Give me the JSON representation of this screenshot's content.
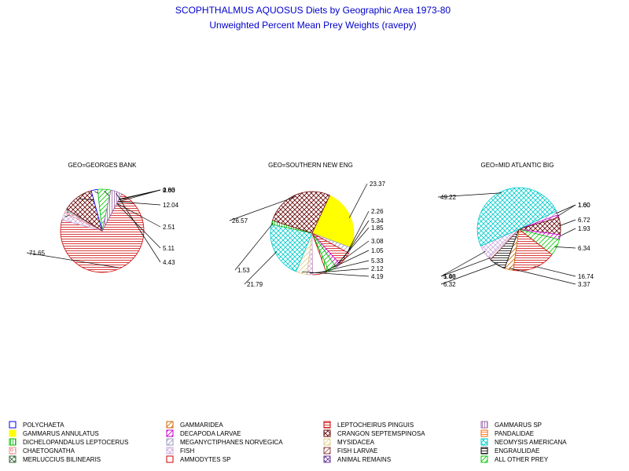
{
  "title": "SCOPHTHALMUS AQUOSUS Diets by Geographic Area 1973-80",
  "subtitle": "Unweighted Percent Mean Prey Weights (ravepy)",
  "categories": [
    {
      "name": "POLYCHAETA",
      "color": "#0000ff",
      "pattern": "none"
    },
    {
      "name": "GAMMARIDEA",
      "color": "#cc6600",
      "pattern": "diag"
    },
    {
      "name": "LEPTOCHEIRUS PINGUIS",
      "color": "#cc0000",
      "pattern": "horiz"
    },
    {
      "name": "GAMMARUS SP",
      "color": "#9966aa",
      "pattern": "vert"
    },
    {
      "name": "GAMMARUS ANNULATUS",
      "color": "#ffff00",
      "pattern": "solid"
    },
    {
      "name": "DECAPODA LARVAE",
      "color": "#cc00cc",
      "pattern": "diag"
    },
    {
      "name": "CRANGON SEPTEMSPINOSA",
      "color": "#660000",
      "pattern": "cross"
    },
    {
      "name": "PANDALIDAE",
      "color": "#ff6600",
      "pattern": "horiz"
    },
    {
      "name": "DICHELOPANDALUS LEPTOCERUS",
      "color": "#00bb00",
      "pattern": "vert"
    },
    {
      "name": "MEGANYCTIPHANES NORVEGICA",
      "color": "#9999bb",
      "pattern": "diag"
    },
    {
      "name": "MYSIDACEA",
      "color": "#ddcc88",
      "pattern": "diag"
    },
    {
      "name": "NEOMYSIS AMERICANA",
      "color": "#00cccc",
      "pattern": "cross"
    },
    {
      "name": "CHAETOGNATHA",
      "color": "#ee8888",
      "pattern": "circle"
    },
    {
      "name": "FISH",
      "color": "#ccaadd",
      "pattern": "cross"
    },
    {
      "name": "FISH LARVAE",
      "color": "#994444",
      "pattern": "diag"
    },
    {
      "name": "ENGRAULIDAE",
      "color": "#000000",
      "pattern": "horiz"
    },
    {
      "name": "MERLUCCIUS BILINEARIS",
      "color": "#336633",
      "pattern": "cross"
    },
    {
      "name": "AMMODYTES SP",
      "color": "#cc0000",
      "pattern": "outline"
    },
    {
      "name": "ANIMAL REMAINS",
      "color": "#663399",
      "pattern": "cross"
    },
    {
      "name": "ALL OTHER PREY",
      "color": "#00cc00",
      "pattern": "diag"
    }
  ],
  "chart_data": [
    {
      "type": "pie",
      "title": "GEO=GEORGES BANK",
      "slices": [
        {
          "category": "LEPTOCHEIRUS PINGUIS",
          "value": 71.65,
          "label": "71.65"
        },
        {
          "category": "FISH",
          "value": 2.83,
          "label": "2.83"
        },
        {
          "category": "CHAETOGNATHA",
          "value": 1.0,
          "label": "1.00"
        },
        {
          "category": "MEGANYCTIPHANES NORVEGICA",
          "value": 0.6,
          "label": "0.60"
        },
        {
          "category": "CRANGON SEPTEMSPINOSA",
          "value": 12.04,
          "label": "12.04"
        },
        {
          "category": "POLYCHAETA",
          "value": 2.51,
          "label": "2.51"
        },
        {
          "category": "ALL OTHER PREY",
          "value": 5.11,
          "label": "5.11"
        },
        {
          "category": "GAMMARUS SP",
          "value": 4.43,
          "label": "4.43"
        }
      ]
    },
    {
      "type": "pie",
      "title": "GEO=SOUTHERN NEW ENG",
      "slices": [
        {
          "category": "GAMMARUS ANNULATUS",
          "value": 23.37,
          "label": "23.37"
        },
        {
          "category": "MEGANYCTIPHANES NORVEGICA",
          "value": 2.26,
          "label": "2.26"
        },
        {
          "category": "LEPTOCHEIRUS PINGUIS",
          "value": 5.34,
          "label": "5.34"
        },
        {
          "category": "DECAPODA LARVAE",
          "value": 1.85,
          "label": "1.85"
        },
        {
          "category": "ALL OTHER PREY",
          "value": 3.08,
          "label": "3.08"
        },
        {
          "category": "DICHELOPANDALUS LEPTOCERUS",
          "value": 1.05,
          "label": "1.05"
        },
        {
          "category": "AMMODYTES SP",
          "value": 5.33,
          "label": "5.33"
        },
        {
          "category": "FISH",
          "value": 2.12,
          "label": "2.12"
        },
        {
          "category": "MYSIDACEA",
          "value": 4.19,
          "label": "4.19"
        },
        {
          "category": "NEOMYSIS AMERICANA",
          "value": 21.79,
          "label": "21.79"
        },
        {
          "category": "DICHELOPANDALUS LEPTOCERUS",
          "value": 1.53,
          "label": "1.53"
        },
        {
          "category": "CRANGON SEPTEMSPINOSA",
          "value": 26.57,
          "label": "26.57"
        }
      ]
    },
    {
      "type": "pie",
      "title": "GEO=MID ATLANTIC BIG",
      "slices": [
        {
          "category": "MEGANYCTIPHANES NORVEGICA",
          "value": 1.6,
          "label": "1.60"
        },
        {
          "category": "DECAPODA LARVAE",
          "value": 1.0,
          "label": "1.00"
        },
        {
          "category": "CRANGON SEPTEMSPINOSA",
          "value": 6.72,
          "label": "6.72"
        },
        {
          "category": "DECAPODA LARVAE",
          "value": 1.93,
          "label": "1.93"
        },
        {
          "category": "ALL OTHER PREY",
          "value": 6.34,
          "label": "6.34"
        },
        {
          "category": "LEPTOCHEIRUS PINGUIS",
          "value": 16.74,
          "label": "16.74"
        },
        {
          "category": "GAMMARIDEA",
          "value": 3.37,
          "label": "3.37"
        },
        {
          "category": "ENGRAULIDAE",
          "value": 6.32,
          "label": "6.32"
        },
        {
          "category": "FISH LARVAE",
          "value": 1.0,
          "label": "1.00"
        },
        {
          "category": "FISH",
          "value": 5.48,
          "label": "5.48"
        },
        {
          "category": "NEOMYSIS AMERICANA",
          "value": 49.22,
          "label": "49.22"
        }
      ]
    }
  ]
}
